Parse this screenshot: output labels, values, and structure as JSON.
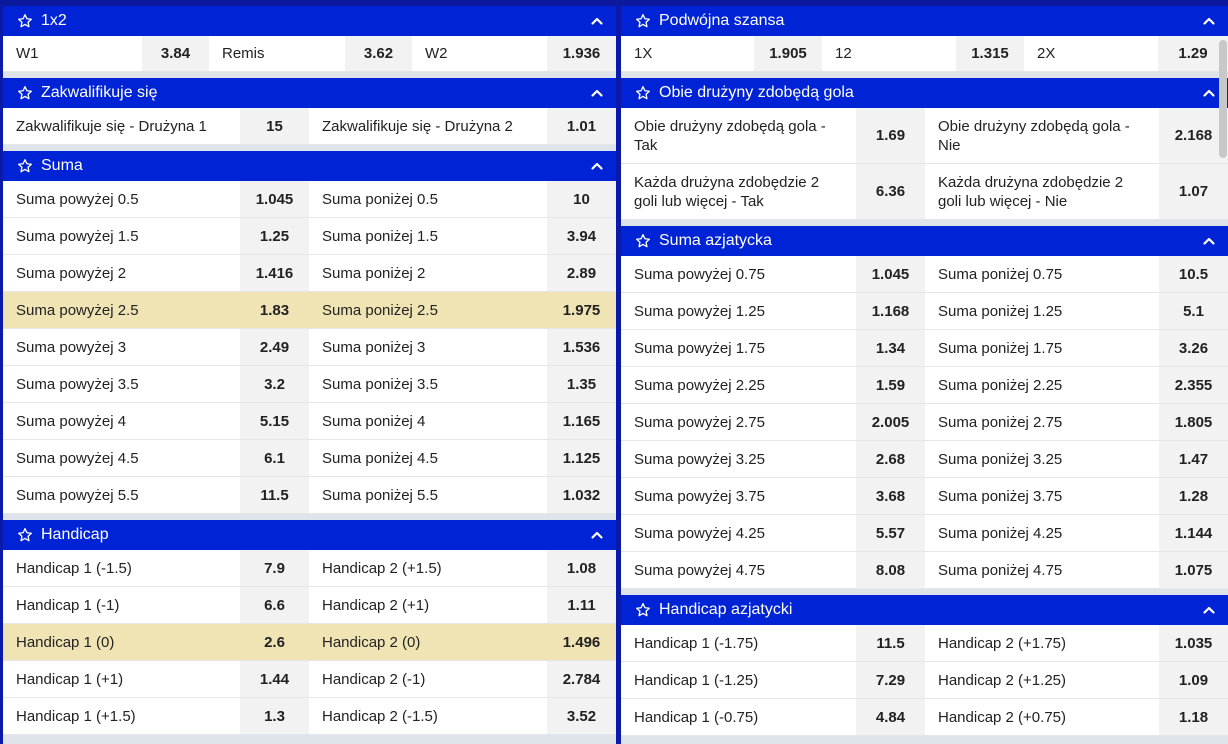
{
  "left_markets": [
    {
      "title": "1x2",
      "layout": "three",
      "rows": [
        [
          {
            "name": "W1",
            "odd": "3.84"
          },
          {
            "name": "Remis",
            "odd": "3.62"
          },
          {
            "name": "W2",
            "odd": "1.936"
          }
        ]
      ]
    },
    {
      "title": "Zakwalifikuje się",
      "layout": "two",
      "rows": [
        [
          {
            "name": "Zakwalifikuje się - Drużyna 1",
            "odd": "15"
          },
          {
            "name": "Zakwalifikuje się - Drużyna 2",
            "odd": "1.01"
          }
        ]
      ]
    },
    {
      "title": "Suma",
      "layout": "two",
      "rows": [
        [
          {
            "name": "Suma powyżej 0.5",
            "odd": "1.045"
          },
          {
            "name": "Suma poniżej 0.5",
            "odd": "10"
          }
        ],
        [
          {
            "name": "Suma powyżej 1.5",
            "odd": "1.25"
          },
          {
            "name": "Suma poniżej 1.5",
            "odd": "3.94"
          }
        ],
        [
          {
            "name": "Suma powyżej 2",
            "odd": "1.416"
          },
          {
            "name": "Suma poniżej 2",
            "odd": "2.89"
          }
        ],
        [
          {
            "name": "Suma powyżej 2.5",
            "odd": "1.83",
            "selected": true
          },
          {
            "name": "Suma poniżej 2.5",
            "odd": "1.975",
            "selected": true
          }
        ],
        [
          {
            "name": "Suma powyżej 3",
            "odd": "2.49"
          },
          {
            "name": "Suma poniżej 3",
            "odd": "1.536"
          }
        ],
        [
          {
            "name": "Suma powyżej 3.5",
            "odd": "3.2"
          },
          {
            "name": "Suma poniżej 3.5",
            "odd": "1.35"
          }
        ],
        [
          {
            "name": "Suma powyżej 4",
            "odd": "5.15"
          },
          {
            "name": "Suma poniżej 4",
            "odd": "1.165"
          }
        ],
        [
          {
            "name": "Suma powyżej 4.5",
            "odd": "6.1"
          },
          {
            "name": "Suma poniżej 4.5",
            "odd": "1.125"
          }
        ],
        [
          {
            "name": "Suma powyżej 5.5",
            "odd": "11.5"
          },
          {
            "name": "Suma poniżej 5.5",
            "odd": "1.032"
          }
        ]
      ]
    },
    {
      "title": "Handicap",
      "layout": "two",
      "rows": [
        [
          {
            "name": "Handicap 1 (-1.5)",
            "odd": "7.9"
          },
          {
            "name": "Handicap 2 (+1.5)",
            "odd": "1.08"
          }
        ],
        [
          {
            "name": "Handicap 1 (-1)",
            "odd": "6.6"
          },
          {
            "name": "Handicap 2 (+1)",
            "odd": "1.11"
          }
        ],
        [
          {
            "name": "Handicap 1 (0)",
            "odd": "2.6",
            "selected": true
          },
          {
            "name": "Handicap 2 (0)",
            "odd": "1.496",
            "selected": true
          }
        ],
        [
          {
            "name": "Handicap 1 (+1)",
            "odd": "1.44"
          },
          {
            "name": "Handicap 2 (-1)",
            "odd": "2.784"
          }
        ],
        [
          {
            "name": "Handicap 1 (+1.5)",
            "odd": "1.3"
          },
          {
            "name": "Handicap 2 (-1.5)",
            "odd": "3.52"
          }
        ]
      ]
    }
  ],
  "right_markets": [
    {
      "title": "Podwójna szansa",
      "layout": "three",
      "rows": [
        [
          {
            "name": "1X",
            "odd": "1.905"
          },
          {
            "name": "12",
            "odd": "1.315"
          },
          {
            "name": "2X",
            "odd": "1.29"
          }
        ]
      ]
    },
    {
      "title": "Obie drużyny zdobędą gola",
      "layout": "two",
      "rows": [
        [
          {
            "name": "Obie drużyny zdobędą gola - Tak",
            "odd": "1.69",
            "tall": true
          },
          {
            "name": "Obie drużyny zdobędą gola - Nie",
            "odd": "2.168",
            "tall": true
          }
        ],
        [
          {
            "name": "Każda drużyna zdobędzie 2 goli lub więcej - Tak",
            "odd": "6.36",
            "tall": true
          },
          {
            "name": "Każda drużyna zdobędzie 2 goli lub więcej - Nie",
            "odd": "1.07",
            "tall": true
          }
        ]
      ]
    },
    {
      "title": "Suma azjatycka",
      "layout": "two",
      "rows": [
        [
          {
            "name": "Suma powyżej 0.75",
            "odd": "1.045"
          },
          {
            "name": "Suma poniżej 0.75",
            "odd": "10.5"
          }
        ],
        [
          {
            "name": "Suma powyżej 1.25",
            "odd": "1.168"
          },
          {
            "name": "Suma poniżej 1.25",
            "odd": "5.1"
          }
        ],
        [
          {
            "name": "Suma powyżej 1.75",
            "odd": "1.34"
          },
          {
            "name": "Suma poniżej 1.75",
            "odd": "3.26"
          }
        ],
        [
          {
            "name": "Suma powyżej 2.25",
            "odd": "1.59"
          },
          {
            "name": "Suma poniżej 2.25",
            "odd": "2.355"
          }
        ],
        [
          {
            "name": "Suma powyżej 2.75",
            "odd": "2.005"
          },
          {
            "name": "Suma poniżej 2.75",
            "odd": "1.805"
          }
        ],
        [
          {
            "name": "Suma powyżej 3.25",
            "odd": "2.68"
          },
          {
            "name": "Suma poniżej 3.25",
            "odd": "1.47"
          }
        ],
        [
          {
            "name": "Suma powyżej 3.75",
            "odd": "3.68"
          },
          {
            "name": "Suma poniżej 3.75",
            "odd": "1.28"
          }
        ],
        [
          {
            "name": "Suma powyżej 4.25",
            "odd": "5.57"
          },
          {
            "name": "Suma poniżej 4.25",
            "odd": "1.144"
          }
        ],
        [
          {
            "name": "Suma powyżej 4.75",
            "odd": "8.08"
          },
          {
            "name": "Suma poniżej 4.75",
            "odd": "1.075"
          }
        ]
      ]
    },
    {
      "title": "Handicap azjatycki",
      "layout": "two",
      "rows": [
        [
          {
            "name": "Handicap 1 (-1.75)",
            "odd": "11.5"
          },
          {
            "name": "Handicap 2 (+1.75)",
            "odd": "1.035"
          }
        ],
        [
          {
            "name": "Handicap 1 (-1.25)",
            "odd": "7.29"
          },
          {
            "name": "Handicap 2 (+1.25)",
            "odd": "1.09"
          }
        ],
        [
          {
            "name": "Handicap 1 (-0.75)",
            "odd": "4.84"
          },
          {
            "name": "Handicap 2 (+0.75)",
            "odd": "1.18"
          }
        ]
      ]
    }
  ],
  "icons": {
    "favorite": "star-outline-icon",
    "collapse": "chevron-up-icon"
  },
  "colors": {
    "header": "#0023d6",
    "selected": "#f0e4b4",
    "odd_bg": "#f2f2f2"
  }
}
